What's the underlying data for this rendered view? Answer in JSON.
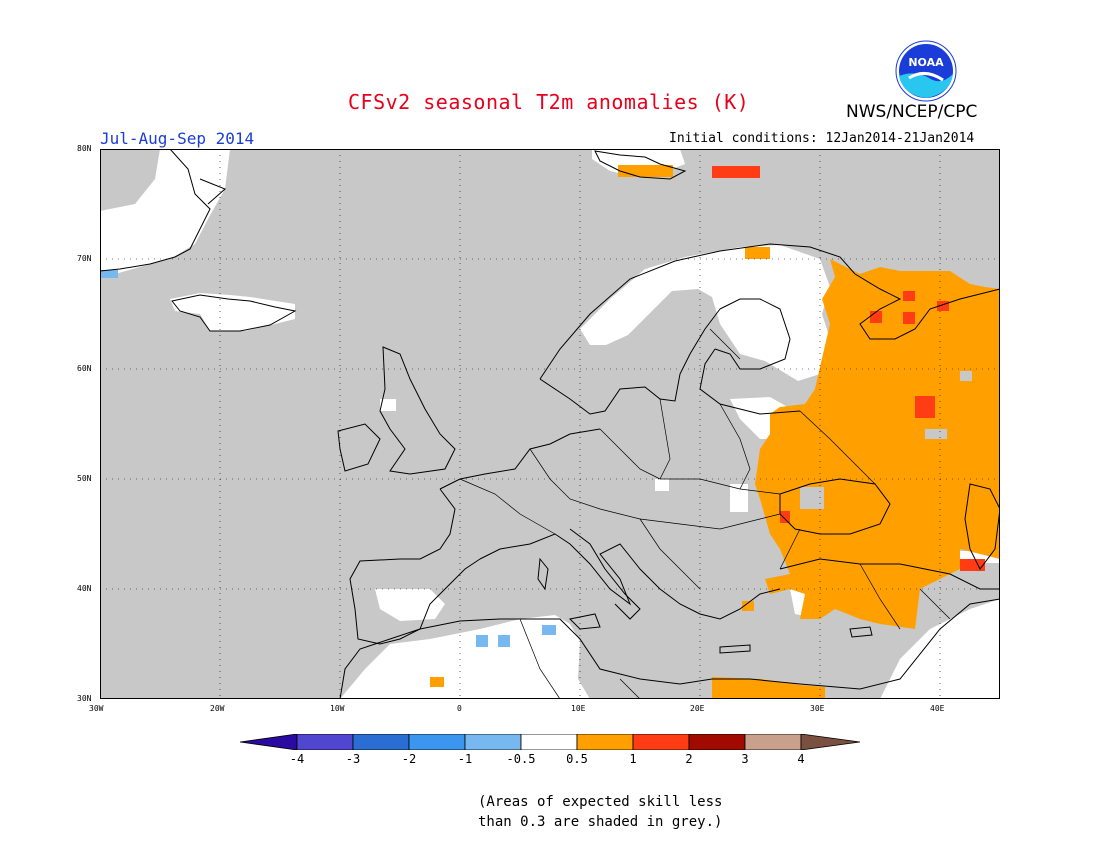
{
  "title": "CFSv2 seasonal T2m anomalies (K)",
  "period": "Jul-Aug-Sep 2014",
  "organization": "NWS/NCEP/CPC",
  "logo_text": "NOAA",
  "initial_conditions": "Initial conditions: 12Jan2014-21Jan2014",
  "map": {
    "region": "Europe",
    "lon_range": [
      -30,
      45
    ],
    "lat_range": [
      30,
      80
    ],
    "lat_ticks": [
      "30N",
      "40N",
      "50N",
      "60N",
      "70N",
      "80N"
    ],
    "lon_ticks": [
      "30W",
      "20W",
      "10W",
      "0",
      "10E",
      "20E",
      "30E",
      "40E"
    ],
    "grid": "dotted",
    "skill_mask_color": "#c8c8c8"
  },
  "colorbar": {
    "labels": [
      "-4",
      "-3",
      "-2",
      "-1",
      "-0.5",
      "0.5",
      "1",
      "2",
      "3",
      "4"
    ],
    "colors": [
      "#2a0aa0",
      "#5046d0",
      "#2a6ed4",
      "#3c96f0",
      "#78b8f0",
      "#ffffff",
      "#ffa000",
      "#ff3c14",
      "#a00a00",
      "#c8a08c",
      "#7a5040"
    ]
  },
  "note_lines": [
    "(Areas of expected skill less",
    "than 0.3 are shaded in grey.)"
  ]
}
